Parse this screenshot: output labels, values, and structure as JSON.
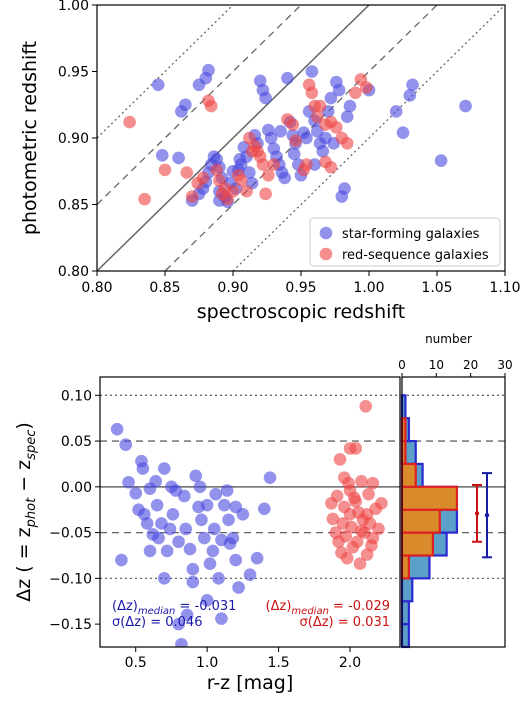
{
  "colors": {
    "star_forming": "#4a4ae0",
    "red_sequence": "#ee4444",
    "median_blue": "#1a1aa8",
    "median_red": "#cc1111",
    "hist_fill": "#d98a2a",
    "hist_fill_blue": "#5aa0c8",
    "line_gray": "#666666"
  },
  "chart_data": [
    {
      "type": "scatter",
      "xlabel": "spectroscopic redshift",
      "ylabel": "photometric redshift",
      "xlim": [
        0.8,
        1.1
      ],
      "ylim": [
        0.8,
        1.0
      ],
      "xticks": [
        "0.80",
        "0.85",
        "0.90",
        "0.95",
        "1.00",
        "1.05",
        "1.10"
      ],
      "yticks": [
        "0.80",
        "0.85",
        "0.90",
        "0.95",
        "1.00"
      ],
      "reference_lines": [
        {
          "offset": 0.0,
          "style": "solid"
        },
        {
          "offset": 0.05,
          "style": "dashed"
        },
        {
          "offset": -0.05,
          "style": "dashed"
        },
        {
          "offset": 0.1,
          "style": "dotted"
        },
        {
          "offset": -0.1,
          "style": "dotted"
        }
      ],
      "legend": {
        "position": "lower-right",
        "entries": [
          "star-forming galaxies",
          "red-sequence galaxies"
        ]
      },
      "series": [
        {
          "name": "star-forming galaxies",
          "points": [
            [
              0.845,
              0.94
            ],
            [
              0.848,
              0.887
            ],
            [
              0.86,
              0.885
            ],
            [
              0.862,
              0.92
            ],
            [
              0.865,
              0.925
            ],
            [
              0.875,
              0.94
            ],
            [
              0.88,
              0.945
            ],
            [
              0.882,
              0.951
            ],
            [
              0.878,
              0.862
            ],
            [
              0.88,
              0.867
            ],
            [
              0.882,
              0.874
            ],
            [
              0.884,
              0.88
            ],
            [
              0.886,
              0.886
            ],
            [
              0.888,
              0.884
            ],
            [
              0.89,
              0.878
            ],
            [
              0.89,
              0.86
            ],
            [
              0.892,
              0.87
            ],
            [
              0.894,
              0.856
            ],
            [
              0.896,
              0.852
            ],
            [
              0.898,
              0.866
            ],
            [
              0.9,
              0.875
            ],
            [
              0.902,
              0.862
            ],
            [
              0.904,
              0.876
            ],
            [
              0.906,
              0.88
            ],
            [
              0.908,
              0.893
            ],
            [
              0.91,
              0.886
            ],
            [
              0.912,
              0.874
            ],
            [
              0.914,
              0.866
            ],
            [
              0.916,
              0.902
            ],
            [
              0.918,
              0.896
            ],
            [
              0.92,
              0.943
            ],
            [
              0.922,
              0.936
            ],
            [
              0.924,
              0.93
            ],
            [
              0.926,
              0.906
            ],
            [
              0.928,
              0.9
            ],
            [
              0.93,
              0.892
            ],
            [
              0.932,
              0.886
            ],
            [
              0.934,
              0.88
            ],
            [
              0.936,
              0.874
            ],
            [
              0.938,
              0.87
            ],
            [
              0.94,
              0.945
            ],
            [
              0.942,
              0.912
            ],
            [
              0.944,
              0.902
            ],
            [
              0.946,
              0.896
            ],
            [
              0.948,
              0.88
            ],
            [
              0.95,
              0.872
            ],
            [
              0.952,
              0.904
            ],
            [
              0.954,
              0.9
            ],
            [
              0.956,
              0.92
            ],
            [
              0.958,
              0.95
            ],
            [
              0.96,
              0.913
            ],
            [
              0.962,
              0.905
            ],
            [
              0.964,
              0.896
            ],
            [
              0.966,
              0.89
            ],
            [
              0.968,
              0.9
            ],
            [
              0.97,
              0.92
            ],
            [
              0.972,
              0.93
            ],
            [
              0.974,
              0.896
            ],
            [
              0.976,
              0.942
            ],
            [
              0.978,
              0.936
            ],
            [
              0.98,
              0.856
            ],
            [
              0.982,
              0.862
            ],
            [
              0.984,
              0.916
            ],
            [
              0.986,
              0.924
            ],
            [
              1.0,
              0.936
            ],
            [
              1.02,
              0.92
            ],
            [
              1.025,
              0.904
            ],
            [
              1.03,
              0.932
            ],
            [
              1.032,
              0.94
            ],
            [
              1.053,
              0.883
            ],
            [
              1.071,
              0.924
            ],
            [
              0.87,
              0.853
            ],
            [
              0.875,
              0.858
            ],
            [
              0.89,
              0.853
            ],
            [
              0.905,
              0.884
            ],
            [
              0.935,
              0.905
            ],
            [
              0.945,
              0.888
            ],
            [
              0.96,
              0.88
            ]
          ]
        },
        {
          "name": "red-sequence galaxies",
          "points": [
            [
              0.824,
              0.912
            ],
            [
              0.835,
              0.854
            ],
            [
              0.85,
              0.876
            ],
            [
              0.866,
              0.874
            ],
            [
              0.87,
              0.856
            ],
            [
              0.874,
              0.866
            ],
            [
              0.878,
              0.87
            ],
            [
              0.882,
              0.928
            ],
            [
              0.884,
              0.924
            ],
            [
              0.888,
              0.876
            ],
            [
              0.89,
              0.868
            ],
            [
              0.892,
              0.858
            ],
            [
              0.894,
              0.862
            ],
            [
              0.896,
              0.854
            ],
            [
              0.9,
              0.86
            ],
            [
              0.904,
              0.872
            ],
            [
              0.906,
              0.868
            ],
            [
              0.91,
              0.86
            ],
            [
              0.912,
              0.9
            ],
            [
              0.914,
              0.89
            ],
            [
              0.916,
              0.894
            ],
            [
              0.918,
              0.89
            ],
            [
              0.92,
              0.886
            ],
            [
              0.922,
              0.88
            ],
            [
              0.924,
              0.858
            ],
            [
              0.926,
              0.872
            ],
            [
              0.93,
              0.88
            ],
            [
              0.94,
              0.914
            ],
            [
              0.944,
              0.91
            ],
            [
              0.946,
              0.898
            ],
            [
              0.952,
              0.876
            ],
            [
              0.954,
              0.88
            ],
            [
              0.956,
              0.94
            ],
            [
              0.958,
              0.934
            ],
            [
              0.96,
              0.924
            ],
            [
              0.962,
              0.916
            ],
            [
              0.964,
              0.924
            ],
            [
              0.968,
              0.91
            ],
            [
              0.972,
              0.912
            ],
            [
              0.976,
              0.908
            ],
            [
              0.98,
              0.9
            ],
            [
              0.984,
              0.896
            ],
            [
              0.99,
              0.934
            ],
            [
              0.994,
              0.944
            ],
            [
              0.998,
              0.938
            ],
            [
              0.968,
              0.882
            ],
            [
              0.972,
              0.878
            ]
          ]
        }
      ]
    },
    {
      "type": "scatter",
      "xlabel": "r-z [mag]",
      "ylabel": "Δz ( = z_phot − z_spec)",
      "xlim": [
        0.25,
        2.35
      ],
      "ylim": [
        -0.175,
        0.12
      ],
      "xticks": [
        "0.5",
        "1.0",
        "1.5",
        "2.0"
      ],
      "yticks": [
        "0.10",
        "0.05",
        "0.00",
        "−0.05",
        "−0.10",
        "−0.15"
      ],
      "reference_lines": [
        {
          "y": 0.0,
          "style": "solid"
        },
        {
          "y": 0.05,
          "style": "dashed"
        },
        {
          "y": -0.05,
          "style": "dashed"
        },
        {
          "y": 0.1,
          "style": "dotted"
        },
        {
          "y": -0.1,
          "style": "dotted"
        }
      ],
      "annotations": [
        {
          "color": "blue",
          "line1": "(Δz)",
          "sub1": "median",
          "val1": " = -0.031",
          "line2": "σ(Δz) = 0.046"
        },
        {
          "color": "red",
          "line1": "(Δz)",
          "sub1": "median",
          "val1": " = -0.029",
          "line2": "σ(Δz) = 0.031"
        }
      ],
      "series": [
        {
          "name": "star-forming galaxies",
          "points": [
            [
              0.37,
              0.063
            ],
            [
              0.4,
              -0.08
            ],
            [
              0.43,
              0.046
            ],
            [
              0.45,
              0.005
            ],
            [
              0.5,
              -0.007
            ],
            [
              0.52,
              -0.025
            ],
            [
              0.54,
              0.028
            ],
            [
              0.56,
              -0.03
            ],
            [
              0.58,
              -0.04
            ],
            [
              0.6,
              -0.002
            ],
            [
              0.62,
              -0.052
            ],
            [
              0.64,
              0.006
            ],
            [
              0.66,
              -0.056
            ],
            [
              0.68,
              -0.04
            ],
            [
              0.7,
              0.02
            ],
            [
              0.72,
              -0.07
            ],
            [
              0.74,
              -0.046
            ],
            [
              0.76,
              -0.03
            ],
            [
              0.78,
              -0.004
            ],
            [
              0.8,
              -0.15
            ],
            [
              0.82,
              -0.172
            ],
            [
              0.84,
              -0.01
            ],
            [
              0.86,
              -0.14
            ],
            [
              0.88,
              -0.068
            ],
            [
              0.9,
              -0.104
            ],
            [
              0.92,
              0.012
            ],
            [
              0.94,
              -0.022
            ],
            [
              0.96,
              -0.036
            ],
            [
              0.98,
              -0.056
            ],
            [
              1.0,
              -0.124
            ],
            [
              1.02,
              -0.084
            ],
            [
              1.04,
              -0.07
            ],
            [
              1.06,
              -0.008
            ],
            [
              1.08,
              -0.1
            ],
            [
              1.1,
              -0.144
            ],
            [
              1.12,
              -0.02
            ],
            [
              1.14,
              -0.004
            ],
            [
              1.16,
              -0.062
            ],
            [
              1.18,
              -0.056
            ],
            [
              1.2,
              -0.08
            ],
            [
              1.22,
              -0.11
            ],
            [
              1.25,
              -0.03
            ],
            [
              1.3,
              -0.096
            ],
            [
              1.35,
              -0.078
            ],
            [
              1.4,
              -0.024
            ],
            [
              1.44,
              0.01
            ],
            [
              0.55,
              0.02
            ],
            [
              0.65,
              -0.02
            ],
            [
              0.75,
              0.0
            ],
            [
              0.85,
              -0.046
            ],
            [
              0.95,
              0.0
            ],
            [
              1.05,
              -0.046
            ],
            [
              1.15,
              -0.036
            ],
            [
              0.7,
              -0.1
            ],
            [
              0.9,
              -0.09
            ],
            [
              1.0,
              -0.02
            ],
            [
              1.1,
              -0.058
            ],
            [
              0.6,
              -0.07
            ],
            [
              0.8,
              -0.06
            ],
            [
              1.2,
              -0.022
            ]
          ]
        },
        {
          "name": "red-sequence galaxies",
          "points": [
            [
              1.87,
              -0.018
            ],
            [
              1.88,
              -0.035
            ],
            [
              1.9,
              -0.05
            ],
            [
              1.91,
              -0.01
            ],
            [
              1.92,
              -0.06
            ],
            [
              1.93,
              0.03
            ],
            [
              1.94,
              -0.072
            ],
            [
              1.95,
              -0.04
            ],
            [
              1.96,
              -0.022
            ],
            [
              1.97,
              -0.054
            ],
            [
              1.98,
              -0.078
            ],
            [
              1.99,
              0.004
            ],
            [
              2.0,
              -0.03
            ],
            [
              2.01,
              -0.044
            ],
            [
              2.02,
              -0.066
            ],
            [
              2.03,
              -0.012
            ],
            [
              2.04,
              0.042
            ],
            [
              2.05,
              -0.06
            ],
            [
              2.06,
              -0.028
            ],
            [
              2.07,
              -0.084
            ],
            [
              2.08,
              0.006
            ],
            [
              2.09,
              -0.036
            ],
            [
              2.1,
              -0.05
            ],
            [
              2.11,
              0.088
            ],
            [
              2.12,
              -0.074
            ],
            [
              2.13,
              -0.008
            ],
            [
              2.14,
              -0.04
            ],
            [
              2.15,
              -0.064
            ],
            [
              2.16,
              0.004
            ],
            [
              2.18,
              -0.024
            ],
            [
              2.2,
              -0.046
            ],
            [
              2.22,
              -0.018
            ],
            [
              1.96,
              0.01
            ],
            [
              2.0,
              -0.004
            ],
            [
              2.04,
              -0.016
            ],
            [
              2.08,
              -0.048
            ],
            [
              2.12,
              -0.03
            ],
            [
              2.16,
              -0.056
            ],
            [
              2.0,
              0.042
            ]
          ]
        }
      ]
    },
    {
      "type": "bar",
      "orientation": "horizontal",
      "xlabel": "number",
      "xlim": [
        0,
        30
      ],
      "xticks": [
        "0",
        "10",
        "20",
        "30"
      ],
      "bin_edges": [
        -0.175,
        -0.15,
        -0.125,
        -0.1,
        -0.075,
        -0.05,
        -0.025,
        0.0,
        0.025,
        0.05,
        0.075,
        0.1
      ],
      "series": [
        {
          "name": "star-forming galaxies",
          "counts": [
            2,
            2,
            3,
            8,
            13,
            16,
            16,
            6,
            4,
            2,
            1
          ]
        },
        {
          "name": "red-sequence galaxies",
          "counts": [
            0,
            0,
            0,
            2,
            9,
            11,
            16,
            4,
            1,
            1,
            0
          ]
        }
      ],
      "medians": [
        {
          "color": "red",
          "y": -0.029,
          "err": 0.031
        },
        {
          "color": "blue",
          "y": -0.031,
          "err": 0.046
        }
      ]
    }
  ]
}
